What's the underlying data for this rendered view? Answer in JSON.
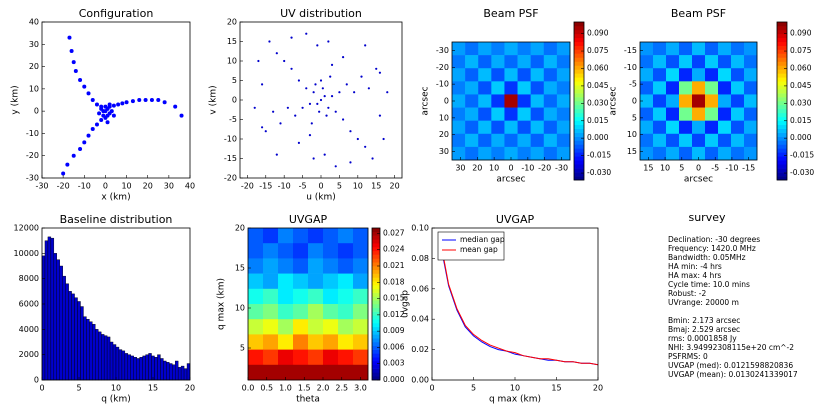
{
  "chart_data": [
    {
      "type": "scatter",
      "title": "Configuration",
      "xlabel": "x (km)",
      "ylabel": "y (km)",
      "color": "#0000ff",
      "x": [
        -17,
        -16,
        -15,
        -14,
        -12,
        -10,
        -8,
        -6,
        -4,
        -2,
        36,
        33,
        28,
        25,
        22,
        19,
        16,
        13,
        10,
        8,
        6,
        4,
        2,
        -20,
        -18,
        -15,
        -12,
        -10,
        -8,
        -6,
        -4,
        -2,
        0,
        1,
        0,
        1,
        -1,
        2,
        -1,
        3,
        0,
        -3,
        2,
        4,
        1,
        -2
      ],
      "y": [
        33,
        27,
        22,
        18,
        14,
        11,
        8,
        5,
        3,
        2,
        -2,
        2,
        4,
        5,
        5,
        5,
        5,
        4.5,
        4,
        3.5,
        3,
        2.5,
        2,
        -28,
        -24,
        -20,
        -17,
        -14,
        -11,
        -8,
        -6,
        -4,
        -3,
        -2,
        0,
        1,
        0,
        -1,
        -2,
        0,
        2,
        -1,
        3,
        -2,
        -5,
        1
      ],
      "xlim": [
        -30,
        40
      ],
      "xticks": [
        -30,
        -20,
        -10,
        0,
        10,
        20,
        30,
        40
      ],
      "ylim": [
        -30,
        40
      ],
      "yticks": [
        -30,
        -20,
        -10,
        0,
        10,
        20,
        30,
        40
      ]
    },
    {
      "type": "scatter",
      "title": "UV distribution",
      "xlabel": "u (km)",
      "ylabel": "v (km)",
      "color": "#0000cc",
      "x": [
        0,
        1,
        -1,
        2,
        -2,
        0.5,
        -0.5,
        3,
        -3,
        1.5,
        -1.5,
        0,
        4,
        -4,
        2.5,
        -2.5,
        5,
        -5,
        6,
        -6,
        7,
        -7,
        8,
        -8,
        3,
        -3,
        9,
        -9,
        10,
        -10,
        11,
        -11,
        12,
        -12,
        13,
        -13,
        14,
        -14,
        15,
        -15,
        16,
        -16,
        17,
        -17,
        18,
        -18,
        1,
        -1,
        2,
        -2,
        4,
        -4,
        6,
        -6,
        8,
        -8,
        -12,
        12,
        -16,
        16
      ],
      "y": [
        0,
        1,
        -1,
        -2,
        2,
        3,
        -3,
        1,
        -1,
        -4,
        4,
        5,
        -3,
        3,
        6,
        -6,
        2,
        -2,
        -5,
        5,
        4,
        -4,
        -8,
        8,
        9,
        -9,
        2,
        -2,
        -10,
        10,
        6,
        -6,
        -12,
        12,
        3,
        -3,
        -15,
        15,
        8,
        -8,
        -4,
        4,
        -10,
        10,
        2,
        -2,
        -14,
        14,
        15,
        -15,
        -17,
        17,
        11,
        -11,
        -16,
        16,
        -14,
        14,
        -7,
        7
      ],
      "xlim": [
        -22,
        22
      ],
      "xticks": [
        -20,
        -15,
        -10,
        -5,
        0,
        5,
        10,
        15,
        20
      ],
      "ylim": [
        -20,
        20
      ],
      "yticks": [
        -20,
        -15,
        -10,
        -5,
        0,
        5,
        10,
        15,
        20
      ]
    },
    {
      "type": "heatmap",
      "title": "Beam PSF",
      "xlabel": "arcsec",
      "ylabel": "arcsec",
      "xlim": [
        35,
        -35
      ],
      "xticks": [
        30,
        20,
        10,
        0,
        -10,
        -20,
        -30
      ],
      "ylim": [
        35,
        -35
      ],
      "yticks": [
        -30,
        -20,
        -10,
        0,
        10,
        20,
        30
      ],
      "z": [
        [
          0.002,
          -0.004,
          0.003,
          -0.002,
          0.004,
          -0.002,
          0.003,
          -0.004,
          0.002
        ],
        [
          -0.003,
          0.005,
          -0.006,
          0.004,
          -0.005,
          0.004,
          -0.006,
          0.005,
          -0.003
        ],
        [
          0.003,
          -0.006,
          0.006,
          -0.008,
          0.006,
          -0.008,
          0.006,
          -0.006,
          0.003
        ],
        [
          -0.002,
          0.004,
          -0.008,
          0.008,
          -0.012,
          0.008,
          -0.008,
          0.004,
          -0.002
        ],
        [
          0.004,
          -0.005,
          0.006,
          -0.012,
          0.095,
          -0.012,
          0.006,
          -0.005,
          0.004
        ],
        [
          -0.002,
          0.004,
          -0.008,
          0.008,
          -0.012,
          0.008,
          -0.008,
          0.004,
          -0.002
        ],
        [
          0.003,
          -0.006,
          0.006,
          -0.008,
          0.006,
          -0.008,
          0.006,
          -0.006,
          0.003
        ],
        [
          -0.003,
          0.005,
          -0.006,
          0.004,
          -0.005,
          0.004,
          -0.006,
          0.005,
          -0.003
        ],
        [
          0.002,
          -0.004,
          0.003,
          -0.002,
          0.004,
          -0.002,
          0.003,
          -0.004,
          0.002
        ]
      ],
      "colorbar": {
        "lim": [
          -0.036,
          0.1
        ],
        "ticks": [
          {
            "value": 0.09,
            "label": "0.090"
          },
          {
            "value": 0.075,
            "label": "0.075"
          },
          {
            "value": 0.06,
            "label": "0.060"
          },
          {
            "value": 0.045,
            "label": "0.045"
          },
          {
            "value": 0.03,
            "label": "0.030"
          },
          {
            "value": 0.015,
            "label": "0.015"
          },
          {
            "value": 0,
            "label": "0.000"
          },
          {
            "value": -0.015,
            "label": "-0.015"
          },
          {
            "value": -0.03,
            "label": "-0.030"
          }
        ]
      }
    },
    {
      "type": "heatmap",
      "title": "Beam PSF",
      "xlabel": "arcsec",
      "ylabel": "arcsec",
      "xlim": [
        17.5,
        -17.5
      ],
      "xticks": [
        15,
        10,
        5,
        0,
        -5,
        -10,
        -15
      ],
      "ylim": [
        17.5,
        -17.5
      ],
      "yticks": [
        -15,
        -10,
        -5,
        0,
        5,
        10,
        15
      ],
      "z": [
        [
          0.001,
          -0.004,
          0.004,
          -0.006,
          0.006,
          -0.006,
          0.004,
          -0.004,
          0.001
        ],
        [
          -0.004,
          0.006,
          -0.008,
          0.008,
          -0.01,
          0.008,
          -0.008,
          0.006,
          -0.004
        ],
        [
          0.004,
          -0.008,
          0.01,
          -0.014,
          0.004,
          -0.014,
          0.01,
          -0.008,
          0.004
        ],
        [
          -0.006,
          0.008,
          -0.014,
          0.03,
          0.06,
          0.03,
          -0.014,
          0.008,
          -0.006
        ],
        [
          0.006,
          -0.01,
          0.004,
          0.06,
          0.095,
          0.06,
          0.004,
          -0.01,
          0.006
        ],
        [
          -0.006,
          0.008,
          -0.014,
          0.03,
          0.06,
          0.03,
          -0.014,
          0.008,
          -0.006
        ],
        [
          0.004,
          -0.008,
          0.01,
          -0.014,
          0.004,
          -0.014,
          0.01,
          -0.008,
          0.004
        ],
        [
          -0.004,
          0.006,
          -0.008,
          0.008,
          -0.01,
          0.008,
          -0.008,
          0.006,
          -0.004
        ],
        [
          0.001,
          -0.004,
          0.004,
          -0.006,
          0.006,
          -0.006,
          0.004,
          -0.004,
          0.001
        ]
      ],
      "colorbar": {
        "lim": [
          -0.036,
          0.1
        ],
        "ticks": [
          {
            "value": 0.09,
            "label": "0.090"
          },
          {
            "value": 0.075,
            "label": "0.075"
          },
          {
            "value": 0.06,
            "label": "0.060"
          },
          {
            "value": 0.045,
            "label": "0.045"
          },
          {
            "value": 0.03,
            "label": "0.030"
          },
          {
            "value": 0.015,
            "label": "0.015"
          },
          {
            "value": 0,
            "label": "0.000"
          },
          {
            "value": -0.015,
            "label": "-0.015"
          },
          {
            "value": -0.03,
            "label": "-0.030"
          }
        ]
      }
    },
    {
      "type": "histogram",
      "title": "Baseline distribution",
      "xlabel": "q (km)",
      "color": "#0000cc",
      "bins": [
        0,
        0.4,
        0.8,
        1.2,
        1.6,
        2,
        2.4,
        2.8,
        3.2,
        3.6,
        4,
        4.4,
        4.8,
        5.2,
        5.6,
        6,
        6.4,
        6.8,
        7.2,
        7.6,
        8,
        8.4,
        8.8,
        9.2,
        9.6,
        10,
        10.4,
        10.8,
        11.2,
        11.6,
        12,
        12.4,
        12.8,
        13.2,
        13.6,
        14,
        14.4,
        14.8,
        15.2,
        15.6,
        16,
        16.4,
        16.8,
        17.2,
        17.6,
        18,
        18.4,
        18.8,
        19.2,
        19.6,
        20
      ],
      "values": [
        9800,
        11000,
        11300,
        11200,
        10000,
        9500,
        9000,
        8200,
        7600,
        7000,
        6800,
        6500,
        6200,
        5800,
        5000,
        4800,
        4600,
        4400,
        4000,
        3800,
        3600,
        3500,
        3400,
        3000,
        2800,
        2600,
        2400,
        2300,
        2100,
        2000,
        1900,
        1800,
        1700,
        1800,
        1900,
        2000,
        2100,
        1900,
        1800,
        2000,
        1700,
        1500,
        1400,
        1300,
        1200,
        1500,
        1000,
        1100,
        900,
        1300
      ],
      "xlim": [
        0,
        20
      ],
      "xticks": [
        0,
        5,
        10,
        15,
        20
      ],
      "ylim": [
        0,
        12000
      ],
      "yticks": [
        0,
        2000,
        4000,
        6000,
        8000,
        10000,
        12000
      ]
    },
    {
      "type": "heatmap",
      "title": "UVGAP",
      "xlabel": "theta",
      "ylabel": "q max (km)",
      "xlim": [
        0,
        3.2
      ],
      "xticks": [
        {
          "value": 0,
          "label": "0.0"
        },
        0.5,
        {
          "value": 1,
          "label": "1.0"
        },
        1.5,
        {
          "value": 2,
          "label": "2.0"
        },
        2.5,
        {
          "value": 3,
          "label": "3.0"
        }
      ],
      "ylim": [
        1,
        20
      ],
      "yticks": [
        5,
        10,
        15,
        20
      ],
      "z": [
        [
          0.006,
          0.005,
          0.007,
          0.006,
          0.005,
          0.006,
          0.007,
          0.006
        ],
        [
          0.006,
          0.007,
          0.006,
          0.005,
          0.007,
          0.006,
          0.005,
          0.006
        ],
        [
          0.007,
          0.008,
          0.007,
          0.006,
          0.008,
          0.007,
          0.006,
          0.007
        ],
        [
          0.009,
          0.008,
          0.01,
          0.009,
          0.008,
          0.009,
          0.01,
          0.008
        ],
        [
          0.011,
          0.012,
          0.01,
          0.011,
          0.012,
          0.01,
          0.011,
          0.012
        ],
        [
          0.013,
          0.014,
          0.012,
          0.013,
          0.015,
          0.013,
          0.012,
          0.014
        ],
        [
          0.016,
          0.017,
          0.015,
          0.018,
          0.016,
          0.017,
          0.015,
          0.016
        ],
        [
          0.019,
          0.02,
          0.018,
          0.021,
          0.019,
          0.02,
          0.018,
          0.019
        ],
        [
          0.024,
          0.023,
          0.025,
          0.024,
          0.023,
          0.025,
          0.024,
          0.023
        ],
        [
          0.027,
          0.027,
          0.027,
          0.027,
          0.027,
          0.027,
          0.027,
          0.027
        ]
      ],
      "colorbar": {
        "lim": [
          0,
          0.028
        ],
        "ticks": [
          {
            "value": 0.027,
            "label": "0.027"
          },
          {
            "value": 0.024,
            "label": "0.024"
          },
          {
            "value": 0.021,
            "label": "0.021"
          },
          {
            "value": 0.018,
            "label": "0.018"
          },
          {
            "value": 0.015,
            "label": "0.015"
          },
          {
            "value": 0.012,
            "label": "0.012"
          },
          {
            "value": 0.009,
            "label": "0.009"
          },
          {
            "value": 0.006,
            "label": "0.006"
          },
          {
            "value": 0.003,
            "label": "0.003"
          },
          {
            "value": 0,
            "label": "0.000"
          }
        ]
      }
    },
    {
      "type": "line",
      "title": "UVGAP",
      "xlabel": "q max (km)",
      "ylabel": "uvgap",
      "legend": "upper left",
      "x": [
        1,
        2,
        3,
        4,
        5,
        6,
        7,
        8,
        9,
        10,
        11,
        12,
        13,
        14,
        15,
        16,
        17,
        18,
        19,
        20
      ],
      "series": [
        {
          "name": "median gap",
          "color": "#0000ff",
          "values": [
            0.09,
            0.062,
            0.046,
            0.035,
            0.029,
            0.025,
            0.022,
            0.02,
            0.019,
            0.017,
            0.016,
            0.015,
            0.014,
            0.013,
            0.013,
            0.012,
            0.012,
            0.011,
            0.011,
            0.01
          ]
        },
        {
          "name": "mean gap",
          "color": "#ff0000",
          "values": [
            0.092,
            0.063,
            0.047,
            0.036,
            0.03,
            0.026,
            0.023,
            0.021,
            0.019,
            0.018,
            0.016,
            0.015,
            0.014,
            0.014,
            0.013,
            0.012,
            0.012,
            0.011,
            0.011,
            0.01
          ]
        }
      ],
      "xlim": [
        0,
        20
      ],
      "xticks": [
        0,
        5,
        10,
        15,
        20
      ],
      "ylim": [
        0,
        0.1
      ],
      "yticks": [
        {
          "value": 0,
          "label": "0.00"
        },
        {
          "value": 0.02,
          "label": "0.02"
        },
        {
          "value": 0.04,
          "label": "0.04"
        },
        {
          "value": 0.06,
          "label": "0.06"
        },
        {
          "value": 0.08,
          "label": "0.08"
        },
        {
          "value": 0.1,
          "label": "0.10"
        }
      ]
    },
    {
      "type": "text",
      "title": "survey",
      "groups": [
        [
          "Declination: -30 degrees",
          "Frequency: 1420.0 MHz",
          "Bandwidth: 0.05MHz",
          "HA min: -4 hrs",
          "HA max: 4 hrs",
          "Cycle time: 10.0 mins",
          "Robust: -2",
          "UVrange: 20000 m"
        ],
        [
          "Bmin: 2.173 arcsec",
          "Bmaj: 2.529 arcsec",
          "rms: 0.0001858 Jy",
          "NHI: 3.94992308115e+20 cm^-2",
          "PSFRMS: 0",
          "UVGAP (med): 0.0121598820836",
          "UVGAP (mean): 0.0130241339017"
        ]
      ]
    }
  ]
}
